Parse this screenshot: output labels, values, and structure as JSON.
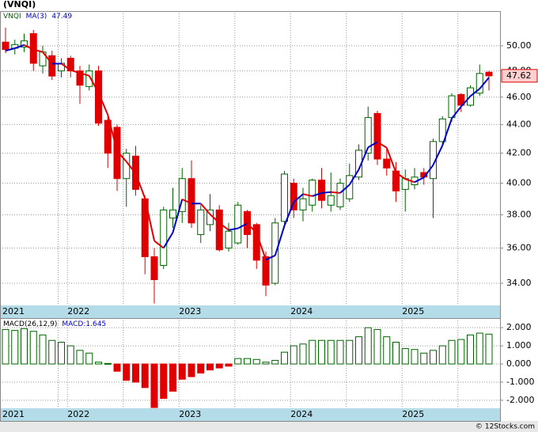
{
  "chart_data": [
    {
      "type": "candlestick",
      "title": "(VNQI)",
      "log_scale": true,
      "grid": true,
      "categories": [
        "2021",
        null,
        null,
        null,
        null,
        null,
        null,
        "2022",
        null,
        null,
        null,
        null,
        null,
        null,
        null,
        null,
        null,
        null,
        null,
        "2023",
        null,
        null,
        null,
        null,
        null,
        null,
        null,
        null,
        null,
        null,
        null,
        "2024",
        null,
        null,
        null,
        null,
        null,
        null,
        null,
        null,
        null,
        null,
        null,
        "2025",
        null,
        null,
        null,
        null,
        null,
        null,
        null,
        null,
        null
      ],
      "series": [
        {
          "name": "VNQI",
          "color_up": "#006400",
          "color_down": "#e00000",
          "open": [
            50.3,
            49.8,
            49.9,
            51.0,
            48.4,
            49.2,
            48.0,
            49.0,
            48.0,
            46.8,
            48.0,
            44.3,
            43.8,
            40.3,
            41.8,
            39.0,
            35.5,
            35.0,
            37.8,
            38.2,
            40.3,
            36.8,
            37.4,
            38.3,
            36.0,
            36.3,
            38.2,
            37.4,
            35.5,
            34.0,
            37.6,
            40.0,
            38.3,
            38.6,
            40.2,
            38.6,
            38.5,
            39.0,
            40.4,
            42.0,
            44.8,
            41.6,
            40.8,
            39.6,
            39.9,
            40.7,
            40.3,
            42.8,
            44.5,
            46.2,
            45.4,
            46.3,
            47.9
          ],
          "high": [
            51.5,
            50.5,
            51.0,
            51.3,
            50.0,
            49.6,
            49.0,
            49.2,
            48.4,
            48.5,
            48.4,
            44.6,
            44.0,
            42.3,
            42.5,
            39.2,
            36.0,
            38.5,
            39.7,
            41.0,
            41.5,
            38.6,
            39.3,
            38.6,
            37.5,
            38.8,
            38.3,
            37.5,
            35.8,
            37.8,
            40.8,
            40.3,
            39.7,
            40.3,
            41.0,
            40.7,
            40.3,
            41.3,
            42.6,
            45.3,
            45.0,
            42.3,
            41.4,
            40.9,
            41.0,
            41.0,
            43.0,
            44.6,
            46.3,
            46.3,
            46.9,
            48.5,
            48.0
          ],
          "low": [
            49.4,
            49.3,
            49.5,
            48.0,
            47.8,
            47.3,
            47.5,
            47.5,
            45.5,
            46.5,
            43.9,
            41.0,
            39.5,
            38.5,
            39.2,
            34.5,
            32.9,
            34.8,
            37.2,
            37.5,
            37.2,
            36.3,
            37.0,
            35.8,
            35.8,
            36.2,
            36.0,
            34.8,
            33.3,
            33.9,
            37.2,
            37.8,
            37.6,
            38.2,
            38.4,
            38.2,
            38.3,
            38.8,
            40.2,
            41.5,
            41.2,
            40.5,
            38.8,
            38.2,
            39.6,
            39.9,
            37.8,
            42.5,
            44.2,
            44.9,
            45.3,
            46.1,
            46.5
          ],
          "close": [
            49.7,
            50.1,
            50.4,
            48.6,
            49.5,
            47.6,
            48.6,
            48.0,
            46.9,
            48.0,
            44.1,
            42.0,
            40.3,
            42.0,
            39.6,
            35.5,
            34.2,
            38.3,
            38.3,
            40.3,
            37.5,
            38.3,
            38.3,
            35.9,
            37.0,
            38.6,
            36.8,
            35.3,
            33.9,
            37.5,
            40.6,
            38.3,
            39.0,
            40.2,
            38.9,
            39.2,
            40.0,
            40.5,
            42.2,
            44.5,
            41.6,
            41.0,
            39.5,
            40.3,
            40.4,
            40.4,
            42.8,
            44.4,
            46.1,
            45.4,
            46.7,
            47.8,
            47.62
          ]
        },
        {
          "name": "MA(3)",
          "color_rising": "#0000cc",
          "color_falling": "#e00000",
          "values": [
            49.6,
            49.8,
            50.07,
            49.7,
            49.5,
            48.57,
            48.57,
            48.07,
            47.83,
            47.63,
            46.33,
            44.7,
            42.13,
            41.43,
            40.63,
            39.03,
            36.43,
            36.0,
            36.93,
            38.97,
            38.7,
            38.7,
            38.03,
            37.5,
            37.07,
            37.17,
            37.47,
            36.9,
            35.33,
            35.57,
            37.33,
            38.8,
            39.3,
            39.17,
            39.37,
            39.43,
            39.37,
            39.9,
            40.9,
            42.4,
            42.77,
            42.37,
            40.7,
            40.27,
            40.07,
            40.37,
            41.2,
            42.53,
            44.43,
            45.3,
            46.07,
            46.63,
            47.49
          ]
        }
      ],
      "ylim": [
        32.8,
        52.9
      ],
      "yticks": [
        {
          "value": 34,
          "label": "34.00"
        },
        {
          "value": 36,
          "label": "36.00"
        },
        {
          "value": 38,
          "label": "38.00"
        },
        {
          "value": 40,
          "label": "40.00"
        },
        {
          "value": 42,
          "label": "42.00"
        },
        {
          "value": 44,
          "label": "44.00"
        },
        {
          "value": 46,
          "label": "46.00"
        },
        {
          "value": 48,
          "label": "48.00"
        },
        {
          "value": 50,
          "label": "50.00"
        }
      ]
    },
    {
      "type": "bar",
      "indicator": "MACD(26,12,9)",
      "grid": true,
      "series": [
        {
          "name": "MACD:",
          "color_up": "#006400",
          "color_down": "#e00000",
          "values": [
            1.9,
            1.85,
            1.95,
            1.8,
            1.6,
            1.3,
            1.2,
            1.0,
            0.75,
            0.6,
            0.1,
            0.03,
            -0.4,
            -0.9,
            -1.0,
            -1.3,
            -2.4,
            -1.9,
            -1.5,
            -0.84,
            -0.7,
            -0.5,
            -0.33,
            -0.22,
            -0.12,
            0.3,
            0.3,
            0.25,
            0.1,
            0.2,
            0.65,
            1.0,
            1.1,
            1.3,
            1.3,
            1.3,
            1.3,
            1.3,
            1.5,
            2.0,
            1.9,
            1.5,
            1.2,
            0.85,
            0.8,
            0.6,
            0.75,
            1.0,
            1.3,
            1.35,
            1.6,
            1.7,
            1.645
          ]
        }
      ],
      "ylim": [
        -2.44,
        2.53
      ],
      "yticks": [
        {
          "value": -2,
          "label": "-2.000"
        },
        {
          "value": -1,
          "label": "-1.000"
        },
        {
          "value": 0,
          "label": "0.000"
        },
        {
          "value": 1,
          "label": "1.000"
        },
        {
          "value": 2,
          "label": "2.000"
        }
      ]
    }
  ],
  "watermark": "© 12Stocks.com"
}
